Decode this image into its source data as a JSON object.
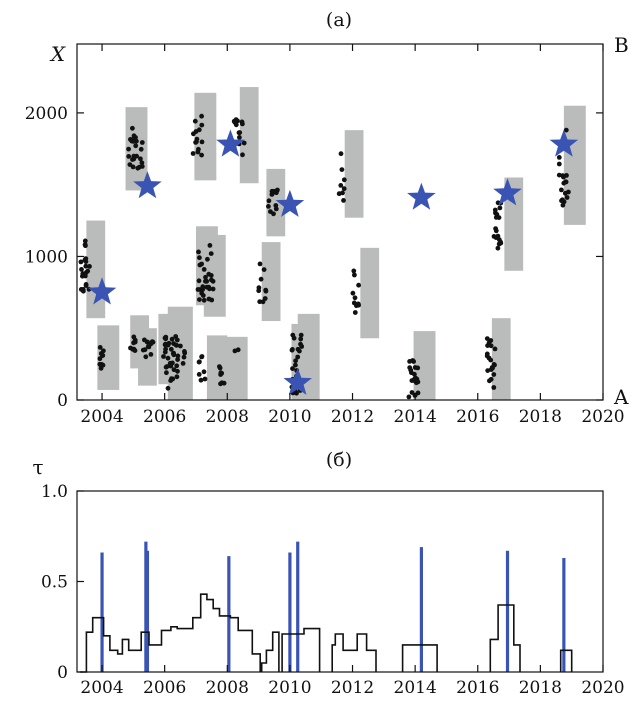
{
  "figure": {
    "panel_a_label": "(a)",
    "panel_b_label": "(б)",
    "right_top_label": "B",
    "right_bottom_label": "A"
  },
  "chart_data": [
    {
      "type": "scatter",
      "title": "(a)",
      "ylabel": "X",
      "xlim": [
        2003.2,
        2020
      ],
      "ylim": [
        0,
        2480
      ],
      "xticks": [
        2004,
        2006,
        2008,
        2010,
        2012,
        2014,
        2016,
        2018,
        2020
      ],
      "xtick_labels": [
        "2004",
        "2006",
        "2008",
        "2010",
        "2012",
        "2014",
        "2016",
        "2018",
        "2020"
      ],
      "yticks": [
        0,
        1000,
        2000
      ],
      "ytick_labels": [
        "0",
        "1000",
        "2000"
      ],
      "grid": false,
      "colors": {
        "points": "#111111",
        "boxes": "#b9bcbb",
        "stars": "#3a54b4"
      },
      "boxes": [
        {
          "x0": 2003.5,
          "x1": 2004.1,
          "y0": 570,
          "y1": 1250
        },
        {
          "x0": 2003.85,
          "x1": 2004.55,
          "y0": 70,
          "y1": 520
        },
        {
          "x0": 2004.75,
          "x1": 2005.45,
          "y0": 1460,
          "y1": 2040
        },
        {
          "x0": 2004.9,
          "x1": 2005.5,
          "y0": 220,
          "y1": 590
        },
        {
          "x0": 2005.15,
          "x1": 2005.75,
          "y0": 100,
          "y1": 500
        },
        {
          "x0": 2005.8,
          "x1": 2006.5,
          "y0": 110,
          "y1": 600
        },
        {
          "x0": 2006.1,
          "x1": 2006.9,
          "y0": 0,
          "y1": 650
        },
        {
          "x0": 2006.95,
          "x1": 2007.65,
          "y0": 1530,
          "y1": 2140
        },
        {
          "x0": 2007.0,
          "x1": 2007.7,
          "y0": 660,
          "y1": 1210
        },
        {
          "x0": 2007.25,
          "x1": 2007.95,
          "y0": 580,
          "y1": 1150
        },
        {
          "x0": 2007.35,
          "x1": 2008.0,
          "y0": 0,
          "y1": 450
        },
        {
          "x0": 2007.95,
          "x1": 2008.65,
          "y0": 0,
          "y1": 440
        },
        {
          "x0": 2008.4,
          "x1": 2009.0,
          "y0": 1510,
          "y1": 2180
        },
        {
          "x0": 2009.1,
          "x1": 2009.7,
          "y0": 550,
          "y1": 1100
        },
        {
          "x0": 2009.25,
          "x1": 2009.85,
          "y0": 1140,
          "y1": 1610
        },
        {
          "x0": 2010.05,
          "x1": 2010.65,
          "y0": 0,
          "y1": 530
        },
        {
          "x0": 2010.25,
          "x1": 2010.95,
          "y0": 0,
          "y1": 600
        },
        {
          "x0": 2011.75,
          "x1": 2012.35,
          "y0": 1270,
          "y1": 1880
        },
        {
          "x0": 2012.25,
          "x1": 2012.85,
          "y0": 430,
          "y1": 1060
        },
        {
          "x0": 2013.95,
          "x1": 2014.65,
          "y0": 0,
          "y1": 480
        },
        {
          "x0": 2016.45,
          "x1": 2017.05,
          "y0": 0,
          "y1": 570
        },
        {
          "x0": 2016.85,
          "x1": 2017.45,
          "y0": 900,
          "y1": 1550
        },
        {
          "x0": 2018.75,
          "x1": 2019.45,
          "y0": 1220,
          "y1": 2050
        }
      ],
      "stars": [
        {
          "x": 2004.0,
          "y": 750
        },
        {
          "x": 2005.45,
          "y": 1490
        },
        {
          "x": 2008.1,
          "y": 1780
        },
        {
          "x": 2010.0,
          "y": 1360
        },
        {
          "x": 2010.25,
          "y": 120
        },
        {
          "x": 2014.2,
          "y": 1410
        },
        {
          "x": 2016.95,
          "y": 1440
        },
        {
          "x": 2018.75,
          "y": 1780
        }
      ],
      "clusters": [
        {
          "x0": 2003.3,
          "x1": 2003.6,
          "y0": 720,
          "y1": 1120,
          "n": 22
        },
        {
          "x0": 2003.85,
          "x1": 2004.05,
          "y0": 220,
          "y1": 380,
          "n": 10
        },
        {
          "x0": 2004.8,
          "x1": 2005.3,
          "y0": 1610,
          "y1": 1900,
          "n": 24
        },
        {
          "x0": 2004.85,
          "x1": 2005.1,
          "y0": 340,
          "y1": 450,
          "n": 8
        },
        {
          "x0": 2005.3,
          "x1": 2005.65,
          "y0": 280,
          "y1": 420,
          "n": 12
        },
        {
          "x0": 2005.95,
          "x1": 2006.45,
          "y0": 80,
          "y1": 450,
          "n": 34
        },
        {
          "x0": 2006.35,
          "x1": 2006.7,
          "y0": 200,
          "y1": 400,
          "n": 8
        },
        {
          "x0": 2006.9,
          "x1": 2007.2,
          "y0": 1700,
          "y1": 1990,
          "n": 14
        },
        {
          "x0": 2007.05,
          "x1": 2007.55,
          "y0": 690,
          "y1": 1080,
          "n": 30
        },
        {
          "x0": 2007.1,
          "x1": 2007.3,
          "y0": 120,
          "y1": 320,
          "n": 8
        },
        {
          "x0": 2007.7,
          "x1": 2007.9,
          "y0": 110,
          "y1": 260,
          "n": 8
        },
        {
          "x0": 2008.2,
          "x1": 2008.55,
          "y0": 1640,
          "y1": 2030,
          "n": 14
        },
        {
          "x0": 2008.2,
          "x1": 2008.35,
          "y0": 330,
          "y1": 380,
          "n": 2
        },
        {
          "x0": 2009.0,
          "x1": 2009.25,
          "y0": 680,
          "y1": 950,
          "n": 10
        },
        {
          "x0": 2009.3,
          "x1": 2009.6,
          "y0": 1280,
          "y1": 1480,
          "n": 12
        },
        {
          "x0": 2010.05,
          "x1": 2010.4,
          "y0": 0,
          "y1": 460,
          "n": 26
        },
        {
          "x0": 2011.55,
          "x1": 2011.75,
          "y0": 1390,
          "y1": 1730,
          "n": 8
        },
        {
          "x0": 2012.0,
          "x1": 2012.2,
          "y0": 570,
          "y1": 910,
          "n": 10
        },
        {
          "x0": 2013.8,
          "x1": 2014.1,
          "y0": 0,
          "y1": 330,
          "n": 22
        },
        {
          "x0": 2016.3,
          "x1": 2016.55,
          "y0": 80,
          "y1": 450,
          "n": 20
        },
        {
          "x0": 2016.5,
          "x1": 2016.75,
          "y0": 1040,
          "y1": 1390,
          "n": 18
        },
        {
          "x0": 2018.6,
          "x1": 2018.9,
          "y0": 1340,
          "y1": 1890,
          "n": 18
        }
      ]
    },
    {
      "type": "line",
      "title": "(б)",
      "ylabel": "τ",
      "xlim": [
        2003.2,
        2020
      ],
      "ylim": [
        0,
        1.0
      ],
      "xticks": [
        2004,
        2006,
        2008,
        2010,
        2012,
        2014,
        2016,
        2018,
        2020
      ],
      "xtick_labels": [
        "2004",
        "2006",
        "2008",
        "2010",
        "2012",
        "2014",
        "2016",
        "2018",
        "2020"
      ],
      "yticks": [
        0,
        0.5,
        1.0
      ],
      "ytick_labels": [
        "0",
        "0.5",
        "1.0"
      ],
      "grid": false,
      "colors": {
        "step": "#111111",
        "bars": "#3a54b4"
      },
      "bars": [
        {
          "x": 2004.0,
          "height": 0.66
        },
        {
          "x": 2005.4,
          "height": 0.72
        },
        {
          "x": 2005.45,
          "height": 0.67
        },
        {
          "x": 2008.05,
          "height": 0.64
        },
        {
          "x": 2010.0,
          "height": 0.66
        },
        {
          "x": 2010.25,
          "height": 0.72
        },
        {
          "x": 2014.2,
          "height": 0.69
        },
        {
          "x": 2016.95,
          "height": 0.67
        },
        {
          "x": 2018.75,
          "height": 0.63
        }
      ],
      "step_segments": [
        [
          [
            2003.3,
            0
          ],
          [
            2003.5,
            0
          ],
          [
            2003.5,
            0.22
          ],
          [
            2003.7,
            0.22
          ],
          [
            2003.7,
            0.3
          ],
          [
            2004.05,
            0.3
          ],
          [
            2004.05,
            0.2
          ],
          [
            2004.25,
            0.2
          ],
          [
            2004.25,
            0.12
          ],
          [
            2004.5,
            0.12
          ],
          [
            2004.5,
            0.1
          ],
          [
            2004.65,
            0.1
          ],
          [
            2004.65,
            0.18
          ],
          [
            2004.85,
            0.18
          ],
          [
            2004.85,
            0.12
          ],
          [
            2005.25,
            0.12
          ],
          [
            2005.25,
            0.22
          ],
          [
            2005.5,
            0.22
          ],
          [
            2005.5,
            0.15
          ],
          [
            2005.9,
            0.15
          ],
          [
            2005.9,
            0.23
          ],
          [
            2006.2,
            0.23
          ],
          [
            2006.2,
            0.25
          ],
          [
            2006.4,
            0.25
          ],
          [
            2006.4,
            0.24
          ],
          [
            2006.9,
            0.24
          ],
          [
            2006.9,
            0.3
          ],
          [
            2007.15,
            0.3
          ],
          [
            2007.15,
            0.43
          ],
          [
            2007.35,
            0.43
          ],
          [
            2007.35,
            0.4
          ],
          [
            2007.55,
            0.4
          ],
          [
            2007.55,
            0.35
          ],
          [
            2007.75,
            0.35
          ],
          [
            2007.75,
            0.31
          ],
          [
            2008.1,
            0.31
          ],
          [
            2008.1,
            0.3
          ],
          [
            2008.35,
            0.3
          ],
          [
            2008.35,
            0.23
          ],
          [
            2008.8,
            0.23
          ],
          [
            2008.8,
            0.1
          ],
          [
            2009.05,
            0.1
          ],
          [
            2009.05,
            0.0
          ]
        ],
        [
          [
            2009.1,
            0
          ],
          [
            2009.1,
            0.05
          ],
          [
            2009.25,
            0.05
          ],
          [
            2009.25,
            0.12
          ],
          [
            2009.45,
            0.12
          ],
          [
            2009.45,
            0.22
          ],
          [
            2009.65,
            0.22
          ],
          [
            2009.65,
            0.0
          ]
        ],
        [
          [
            2009.75,
            0
          ],
          [
            2009.75,
            0.21
          ],
          [
            2010.45,
            0.21
          ],
          [
            2010.45,
            0.24
          ],
          [
            2010.95,
            0.24
          ],
          [
            2010.95,
            0.0
          ]
        ],
        [
          [
            2011.35,
            0
          ],
          [
            2011.35,
            0.15
          ],
          [
            2011.45,
            0.15
          ],
          [
            2011.45,
            0.21
          ],
          [
            2011.7,
            0.21
          ],
          [
            2011.7,
            0.12
          ],
          [
            2012.15,
            0.12
          ],
          [
            2012.15,
            0.21
          ],
          [
            2012.45,
            0.21
          ],
          [
            2012.45,
            0.12
          ],
          [
            2012.75,
            0.12
          ],
          [
            2012.75,
            0.0
          ]
        ],
        [
          [
            2013.6,
            0
          ],
          [
            2013.6,
            0.15
          ],
          [
            2014.7,
            0.15
          ],
          [
            2014.7,
            0.0
          ]
        ],
        [
          [
            2016.4,
            0
          ],
          [
            2016.4,
            0.18
          ],
          [
            2016.65,
            0.18
          ],
          [
            2016.65,
            0.37
          ],
          [
            2017.15,
            0.37
          ],
          [
            2017.15,
            0.15
          ],
          [
            2017.35,
            0.15
          ],
          [
            2017.35,
            0.0
          ]
        ],
        [
          [
            2018.65,
            0
          ],
          [
            2018.65,
            0.12
          ],
          [
            2019.0,
            0.12
          ],
          [
            2019.0,
            0.0
          ]
        ]
      ]
    }
  ]
}
